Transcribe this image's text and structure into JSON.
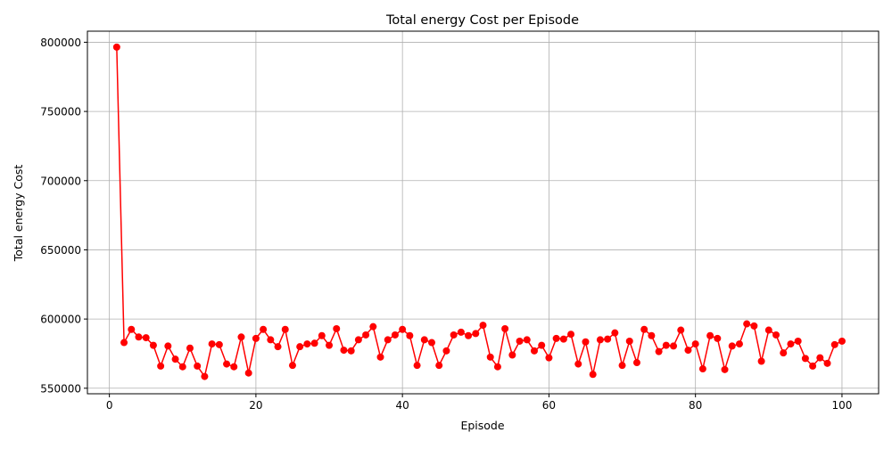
{
  "chart_data": {
    "type": "line",
    "title": "Total energy Cost per Episode",
    "xlabel": "Episode",
    "ylabel": "Total energy Cost",
    "xlim": [
      -3,
      105
    ],
    "ylim": [
      546000,
      808000
    ],
    "grid": true,
    "series_color": "#ff0000",
    "x_ticks": [
      {
        "value": 0,
        "label": "0"
      },
      {
        "value": 20,
        "label": "20"
      },
      {
        "value": 40,
        "label": "40"
      },
      {
        "value": 60,
        "label": "60"
      },
      {
        "value": 80,
        "label": "80"
      },
      {
        "value": 100,
        "label": "100"
      }
    ],
    "y_ticks": [
      {
        "value": 550000,
        "label": "550000"
      },
      {
        "value": 600000,
        "label": "600000"
      },
      {
        "value": 650000,
        "label": "650000"
      },
      {
        "value": 700000,
        "label": "700000"
      },
      {
        "value": 750000,
        "label": "750000"
      },
      {
        "value": 800000,
        "label": "800000"
      }
    ],
    "series": [
      {
        "x": [
          1,
          2,
          3,
          4,
          5,
          6,
          7,
          8,
          9,
          10,
          11,
          12,
          13,
          14,
          15,
          16,
          17,
          18,
          19,
          20,
          21,
          22,
          23,
          24,
          25,
          26,
          27,
          28,
          29,
          30,
          31,
          32,
          33,
          34,
          35,
          36,
          37,
          38,
          39,
          40,
          41,
          42,
          43,
          44,
          45,
          46,
          47,
          48,
          49,
          50,
          51,
          52,
          53,
          54,
          55,
          56,
          57,
          58,
          59,
          60,
          61,
          62,
          63,
          64,
          65,
          66,
          67,
          68,
          69,
          70,
          71,
          72,
          73,
          74,
          75,
          76,
          77,
          78,
          79,
          80,
          81,
          82,
          83,
          84,
          85,
          86,
          87,
          88,
          89,
          90,
          91,
          92,
          93,
          94,
          95,
          96,
          97,
          98,
          99,
          100
        ],
        "y": [
          796500,
          583000,
          592500,
          587000,
          586500,
          581000,
          566000,
          580500,
          571000,
          565500,
          579000,
          566000,
          558500,
          582000,
          581500,
          567500,
          565500,
          587000,
          561000,
          586000,
          592500,
          585000,
          580000,
          592500,
          566500,
          580000,
          582000,
          582500,
          588000,
          581000,
          593000,
          577500,
          577000,
          585000,
          588500,
          594500,
          572500,
          585000,
          588500,
          592500,
          588000,
          566500,
          585000,
          583000,
          566500,
          577000,
          588500,
          590500,
          588000,
          589500,
          595500,
          572500,
          565500,
          593000,
          574000,
          584000,
          585000,
          577000,
          581000,
          572000,
          586000,
          585500,
          589000,
          567500,
          583500,
          560000,
          585000,
          585500,
          590000,
          566500,
          584000,
          568500,
          592500,
          588000,
          576500,
          581000,
          580500,
          592000,
          577500,
          582000,
          564000,
          588000,
          586000,
          563500,
          580500,
          582000,
          596500,
          595000,
          569500,
          592000,
          588500,
          575500,
          582000,
          584000,
          571500,
          566000,
          572000,
          568000,
          581500,
          584000
        ]
      }
    ]
  }
}
